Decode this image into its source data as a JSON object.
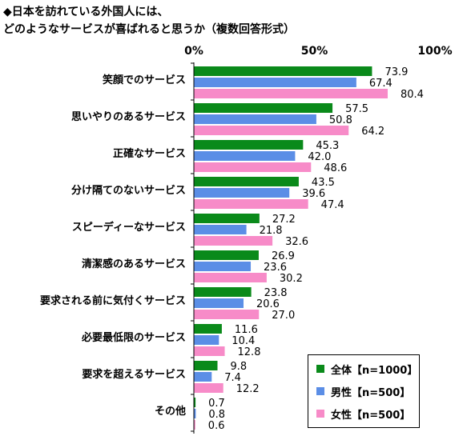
{
  "title_line1": "◆日本を訪れている外国人には、",
  "title_line2": "どのようなサービスが喜ばれると思うか（複数回答形式）",
  "chart_data": {
    "type": "bar",
    "orientation": "horizontal",
    "categories": [
      "笑顔でのサービス",
      "思いやりのあるサービス",
      "正確なサービス",
      "分け隔てのないサービス",
      "スピーディーなサービス",
      "清潔感のあるサービス",
      "要求される前に気付くサービス",
      "必要最低限のサービス",
      "要求を超えるサービス",
      "その他"
    ],
    "series": [
      {
        "name": "全体【n=1000】",
        "color": "#0a8a1a",
        "values": [
          73.9,
          57.5,
          45.3,
          43.5,
          27.2,
          26.9,
          23.8,
          11.6,
          9.8,
          0.7
        ]
      },
      {
        "name": "男性【n=500】",
        "color": "#5b8ee6",
        "values": [
          67.4,
          50.8,
          42.0,
          39.6,
          21.8,
          23.6,
          20.6,
          10.4,
          7.4,
          0.8
        ]
      },
      {
        "name": "女性【n=500】",
        "color": "#f78bc8",
        "values": [
          80.4,
          64.2,
          48.6,
          47.4,
          32.6,
          30.2,
          27.0,
          12.8,
          12.2,
          0.6
        ]
      }
    ],
    "xticks": [
      "0%",
      "50%",
      "100%"
    ],
    "xlim": [
      0,
      100
    ],
    "legend_position": "bottom-right"
  }
}
